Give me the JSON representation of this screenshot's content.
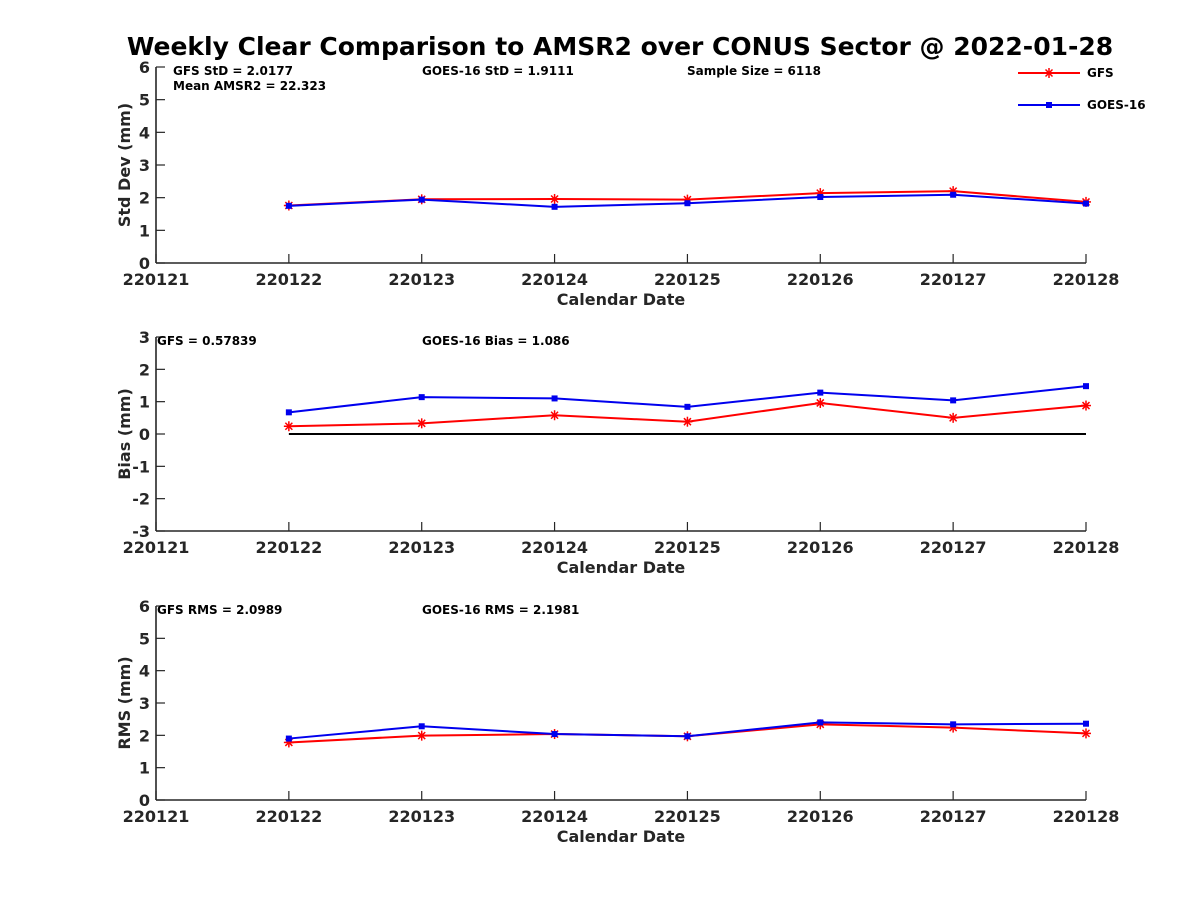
{
  "figure": {
    "title": "Weekly Clear Comparison to AMSR2 over CONUS Sector @ 2022-01-28"
  },
  "colors": {
    "gfs": "#ff0000",
    "goes": "#0000ee",
    "axis": "#262626",
    "zero_line": "#000000"
  },
  "legend": {
    "placement": "top-right",
    "entries": [
      {
        "label": "GFS",
        "marker": "asterisk",
        "color": "#ff0000"
      },
      {
        "label": "GOES-16",
        "marker": "square",
        "color": "#0000ee"
      }
    ]
  },
  "chart_data": [
    {
      "type": "line",
      "id": "stddev",
      "x": [
        "220121",
        "220122",
        "220123",
        "220124",
        "220125",
        "220126",
        "220127",
        "220128"
      ],
      "xlabel": "Calendar Date",
      "ylabel": "Std Dev (mm)",
      "ylim": [
        0,
        6
      ],
      "yticks": [
        "0",
        "1",
        "2",
        "3",
        "4",
        "5",
        "6"
      ],
      "series": [
        {
          "name": "GFS",
          "color": "#ff0000",
          "marker": "asterisk",
          "values": [
            null,
            1.76,
            1.95,
            1.96,
            1.94,
            2.14,
            2.2,
            1.87
          ]
        },
        {
          "name": "GOES-16",
          "color": "#0000ee",
          "marker": "square",
          "values": [
            null,
            1.75,
            1.94,
            1.72,
            1.83,
            2.02,
            2.09,
            1.82
          ]
        }
      ],
      "annotations": [
        "GFS StD = 2.0177",
        "Mean AMSR2 = 22.323",
        "GOES-16 StD = 1.9111",
        "Sample Size = 6118"
      ],
      "zero_line": false
    },
    {
      "type": "line",
      "id": "bias",
      "x": [
        "220121",
        "220122",
        "220123",
        "220124",
        "220125",
        "220126",
        "220127",
        "220128"
      ],
      "xlabel": "Calendar Date",
      "ylabel": "Bias (mm)",
      "ylim": [
        -3,
        3
      ],
      "yticks": [
        "-3",
        "-2",
        "-1",
        "0",
        "1",
        "2",
        "3"
      ],
      "series": [
        {
          "name": "GFS",
          "color": "#ff0000",
          "marker": "asterisk",
          "values": [
            null,
            0.24,
            0.33,
            0.58,
            0.38,
            0.96,
            0.5,
            0.88
          ]
        },
        {
          "name": "GOES-16",
          "color": "#0000ee",
          "marker": "square",
          "values": [
            null,
            0.67,
            1.14,
            1.1,
            0.84,
            1.28,
            1.04,
            1.48
          ]
        }
      ],
      "annotations": [
        "GFS = 0.57839",
        "GOES-16 Bias  = 1.086"
      ],
      "zero_line": true
    },
    {
      "type": "line",
      "id": "rms",
      "x": [
        "220121",
        "220122",
        "220123",
        "220124",
        "220125",
        "220126",
        "220127",
        "220128"
      ],
      "xlabel": "Calendar Date",
      "ylabel": "RMS (mm)",
      "ylim": [
        0,
        6
      ],
      "yticks": [
        "0",
        "1",
        "2",
        "3",
        "4",
        "5",
        "6"
      ],
      "series": [
        {
          "name": "GFS",
          "color": "#ff0000",
          "marker": "asterisk",
          "values": [
            null,
            1.78,
            1.99,
            2.04,
            1.97,
            2.34,
            2.24,
            2.06
          ]
        },
        {
          "name": "GOES-16",
          "color": "#0000ee",
          "marker": "square",
          "values": [
            null,
            1.9,
            2.28,
            2.04,
            1.97,
            2.4,
            2.34,
            2.36
          ]
        }
      ],
      "annotations": [
        "GFS RMS = 2.0989",
        "GOES-16 RMS = 2.1981"
      ],
      "zero_line": false
    }
  ]
}
